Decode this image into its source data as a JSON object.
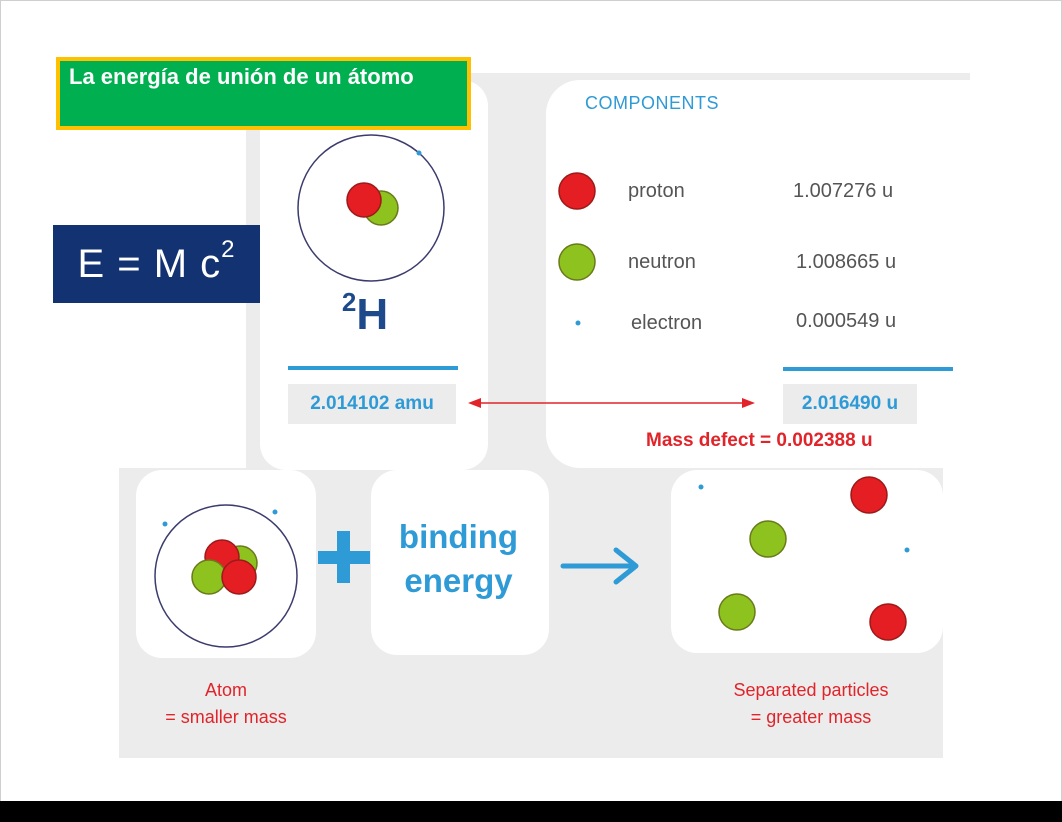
{
  "title": "La energía de unión de un átomo",
  "formula": {
    "base": "E = M c",
    "exponent": "2"
  },
  "isotope": {
    "mass_number": "2",
    "symbol": "H"
  },
  "atom_mass": "2.014102 amu",
  "components": {
    "heading": "COMPONENTS",
    "items": [
      {
        "name": "proton",
        "value": "1.007276 u",
        "color": "#e41e22"
      },
      {
        "name": "neutron",
        "value": "1.008665 u",
        "color": "#8dc21f"
      },
      {
        "name": "electron",
        "value": "0.000549 u",
        "color": "#2e9ad6"
      }
    ],
    "total": "2.016490 u"
  },
  "mass_defect": "Mass defect = 0.002388 u",
  "binding_energy": "binding energy",
  "captions": {
    "atom_line1": "Atom",
    "atom_line2": "= smaller mass",
    "separated_line1": "Separated particles",
    "separated_line2": "= greater mass"
  },
  "colors": {
    "accent_blue": "#2e9ad6",
    "red": "#e0242a",
    "title_green": "#00b050",
    "title_border": "#ffc000",
    "formula_bg": "#133271"
  }
}
